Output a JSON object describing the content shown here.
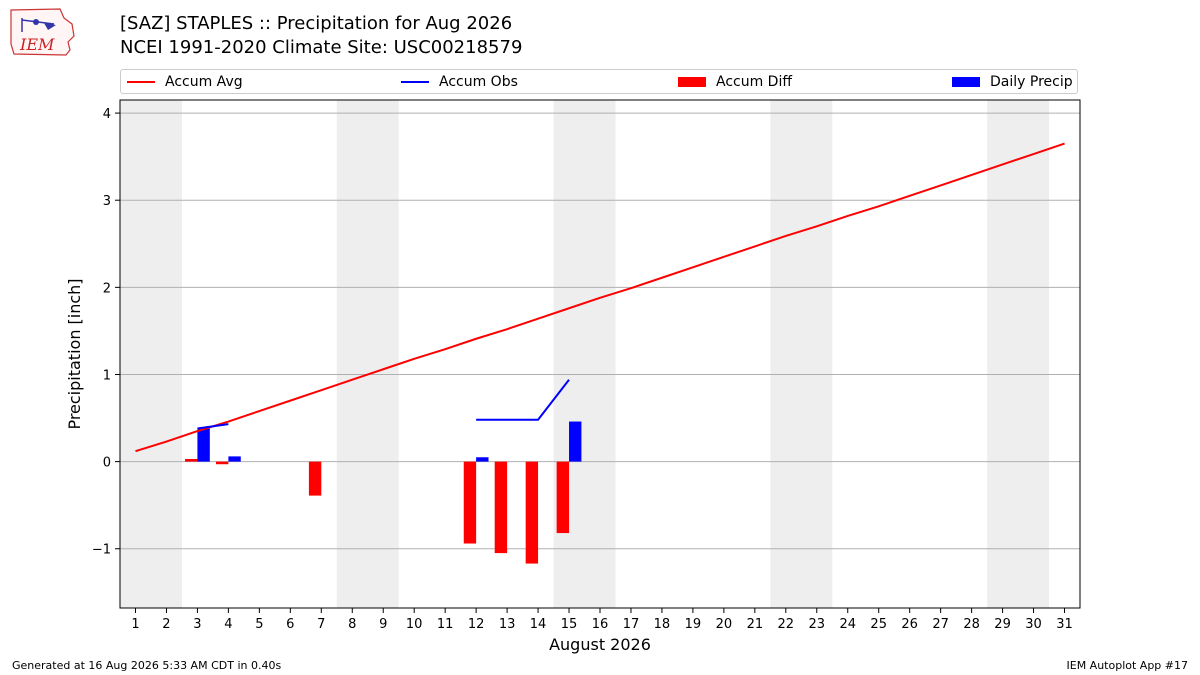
{
  "header": {
    "title_line1": "[SAZ] STAPLES :: Precipitation for Aug 2026",
    "title_line2": "NCEI 1991-2020 Climate Site: USC00218579",
    "logo_text": "IEM"
  },
  "footer": {
    "generated": "Generated at 16 Aug 2026 5:33 AM CDT in 0.40s",
    "app": "IEM Autoplot App #17"
  },
  "colors": {
    "avg": "#ff0000",
    "obs": "#0000ff",
    "diff": "#ff0000",
    "daily": "#0000ff",
    "weekend_band": "#eeeeee",
    "grid": "#b0b0b0"
  },
  "chart_data": {
    "type": "bar",
    "xlabel": "August 2026",
    "ylabel": "Precipitation [inch]",
    "xlim": [
      0.5,
      31.5
    ],
    "ylim": [
      -1.68,
      4.15
    ],
    "yticks": [
      -1,
      0,
      1,
      2,
      3,
      4
    ],
    "ytick_labels": [
      "−1",
      "0",
      "1",
      "2",
      "3",
      "4"
    ],
    "x": [
      1,
      2,
      3,
      4,
      5,
      6,
      7,
      8,
      9,
      10,
      11,
      12,
      13,
      14,
      15,
      16,
      17,
      18,
      19,
      20,
      21,
      22,
      23,
      24,
      25,
      26,
      27,
      28,
      29,
      30,
      31
    ],
    "weekend_bands": [
      [
        0.5,
        2.5
      ],
      [
        7.5,
        9.5
      ],
      [
        14.5,
        16.5
      ],
      [
        21.5,
        23.5
      ],
      [
        28.5,
        30.5
      ]
    ],
    "grid": "y",
    "legend": "top",
    "legend_entries": [
      "Accum Avg",
      "Accum Obs",
      "Accum Diff",
      "Daily Precip"
    ],
    "series": [
      {
        "name": "Accum Avg",
        "kind": "line",
        "x": [
          1,
          2,
          3,
          4,
          5,
          6,
          7,
          8,
          9,
          10,
          11,
          12,
          13,
          14,
          15,
          16,
          17,
          18,
          19,
          20,
          21,
          22,
          23,
          24,
          25,
          26,
          27,
          28,
          29,
          30,
          31
        ],
        "values": [
          0.12,
          0.23,
          0.35,
          0.46,
          0.58,
          0.7,
          0.82,
          0.94,
          1.06,
          1.18,
          1.29,
          1.41,
          1.52,
          1.64,
          1.76,
          1.88,
          1.99,
          2.11,
          2.23,
          2.35,
          2.47,
          2.59,
          2.7,
          2.82,
          2.93,
          3.05,
          3.17,
          3.29,
          3.41,
          3.53,
          3.65
        ]
      },
      {
        "name": "Accum Obs",
        "kind": "line",
        "x": [
          3,
          4,
          null,
          12,
          13,
          14,
          15
        ],
        "values": [
          0.38,
          0.43,
          null,
          0.48,
          0.48,
          0.48,
          0.94
        ]
      },
      {
        "name": "Accum Diff",
        "kind": "bar",
        "x": [
          3,
          4,
          7,
          12,
          13,
          14,
          15
        ],
        "values": [
          0.03,
          -0.03,
          -0.39,
          -0.94,
          -1.05,
          -1.17,
          -0.82
        ]
      },
      {
        "name": "Daily Precip",
        "kind": "bar",
        "x": [
          3,
          4,
          12,
          15
        ],
        "values": [
          0.38,
          0.06,
          0.05,
          0.46
        ]
      }
    ]
  }
}
